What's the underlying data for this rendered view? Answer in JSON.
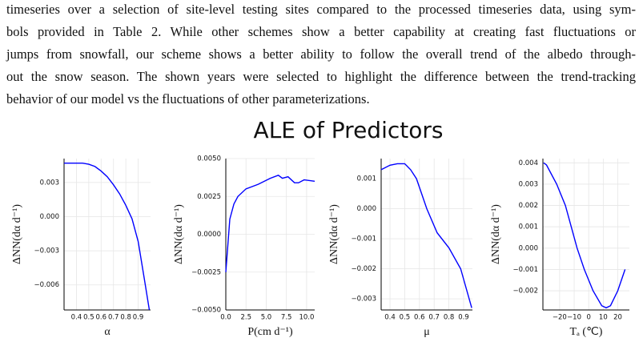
{
  "paragraph": [
    "timeseries over a selection of site-level testing sites compared to the processed timeseries data, using sym-",
    "bols provided in Table 2. While other schemes show a better capability at creating fast fluctuations or",
    "jumps from snowfall, our scheme shows a better ability to follow the overall trend of the albedo through-",
    "out the snow season. The shown years were selected to highlight the difference between the trend-tracking",
    "behavior of our model vs the fluctuations of other parameterizations."
  ],
  "figure": {
    "title": "ALE of Predictors"
  },
  "chart_data": [
    {
      "type": "line",
      "color": "#0000ff",
      "grid": true,
      "x_label": "α",
      "y_label": "ΔNN(dα d⁻¹)",
      "x": [
        0.3,
        0.35,
        0.4,
        0.45,
        0.5,
        0.55,
        0.6,
        0.65,
        0.7,
        0.75,
        0.8,
        0.85,
        0.9,
        0.95,
        0.99
      ],
      "values": [
        0.0047,
        0.0047,
        0.0047,
        0.0047,
        0.0046,
        0.0044,
        0.004,
        0.0035,
        0.0028,
        0.002,
        0.001,
        -0.0002,
        -0.0022,
        -0.0055,
        -0.0082
      ],
      "xlim": [
        0.3,
        1.0
      ],
      "ylim": [
        -0.0082,
        0.0051
      ],
      "xticks": [
        0.4,
        0.5,
        0.6,
        0.7,
        0.8,
        0.9
      ],
      "yticks": [
        0.003,
        {
          "value": 0,
          "label": "0.000"
        },
        {
          "value": -0.003,
          "label": "−0.003"
        },
        {
          "value": -0.006,
          "label": "−0.006"
        }
      ]
    },
    {
      "type": "line",
      "color": "#0000ff",
      "grid": true,
      "x_label": "P(cm d⁻¹)",
      "y_label": "ΔNN(dα d⁻¹)",
      "x": [
        0,
        0.5,
        1,
        1.5,
        2.5,
        4,
        5.5,
        6.5,
        7,
        7.7,
        8.5,
        9,
        9.7,
        11
      ],
      "values": [
        -0.0025,
        0.001,
        0.002,
        0.0025,
        0.003,
        0.0033,
        0.0037,
        0.0039,
        0.0037,
        0.0038,
        0.0034,
        0.0034,
        0.0036,
        0.0035
      ],
      "xlim": [
        0,
        11
      ],
      "ylim": [
        -0.005,
        0.005
      ],
      "xticks": [
        {
          "value": 0,
          "label": "0.0"
        },
        2.5,
        {
          "value": 5,
          "label": "5.0"
        },
        7.5,
        {
          "value": 10,
          "label": "10.0"
        }
      ],
      "yticks": [
        {
          "value": 0.005,
          "label": "0.0050"
        },
        0.0025,
        {
          "value": 0,
          "label": "0.0000"
        },
        {
          "value": -0.0025,
          "label": "−0.0025"
        },
        {
          "value": -0.005,
          "label": "−0.0050"
        }
      ]
    },
    {
      "type": "line",
      "color": "#0000ff",
      "grid": true,
      "x_label": "μ",
      "y_label": "ΔNN(dα d⁻¹)",
      "x": [
        0.34,
        0.4,
        0.45,
        0.5,
        0.54,
        0.58,
        0.65,
        0.72,
        0.8,
        0.88,
        0.955
      ],
      "values": [
        0.0013,
        0.00145,
        0.0015,
        0.0015,
        0.0013,
        0.001,
        0.0,
        -0.0008,
        -0.0013,
        -0.002,
        -0.0033
      ],
      "xlim": [
        0.34,
        0.96
      ],
      "ylim": [
        -0.00337,
        0.00167
      ],
      "xticks": [
        0.4,
        0.5,
        0.6,
        0.7,
        0.8,
        0.9
      ],
      "yticks": [
        0.001,
        {
          "value": 0,
          "label": "0.000"
        },
        {
          "value": -0.001,
          "label": "−0.001"
        },
        {
          "value": -0.002,
          "label": "−0.002"
        },
        {
          "value": -0.003,
          "label": "−0.003"
        }
      ]
    },
    {
      "type": "line",
      "color": "#0000ff",
      "grid": true,
      "x_label": "Tₐ (℃)",
      "y_label": "ΔNN(dα d⁻¹)",
      "x": [
        -31,
        -29,
        -22,
        -16,
        -12,
        -8,
        -3,
        3,
        9,
        12,
        15,
        20,
        25
      ],
      "values": [
        0.004,
        0.0039,
        0.003,
        0.002,
        0.001,
        0.0,
        -0.001,
        -0.002,
        -0.0027,
        -0.0028,
        -0.0027,
        -0.002,
        -0.001
      ],
      "xlim": [
        -31.5,
        28
      ],
      "ylim": [
        -0.0029,
        0.0042
      ],
      "xticks": [
        {
          "value": -20,
          "label": "−20"
        },
        {
          "value": -10,
          "label": "−10"
        },
        0,
        10,
        20
      ],
      "yticks": [
        {
          "value": 0.004,
          "label": "0.004"
        },
        0.003,
        0.002,
        0.001,
        {
          "value": 0,
          "label": "0.000"
        },
        {
          "value": -0.001,
          "label": "−0.001"
        },
        {
          "value": -0.002,
          "label": "−0.002"
        }
      ]
    }
  ]
}
